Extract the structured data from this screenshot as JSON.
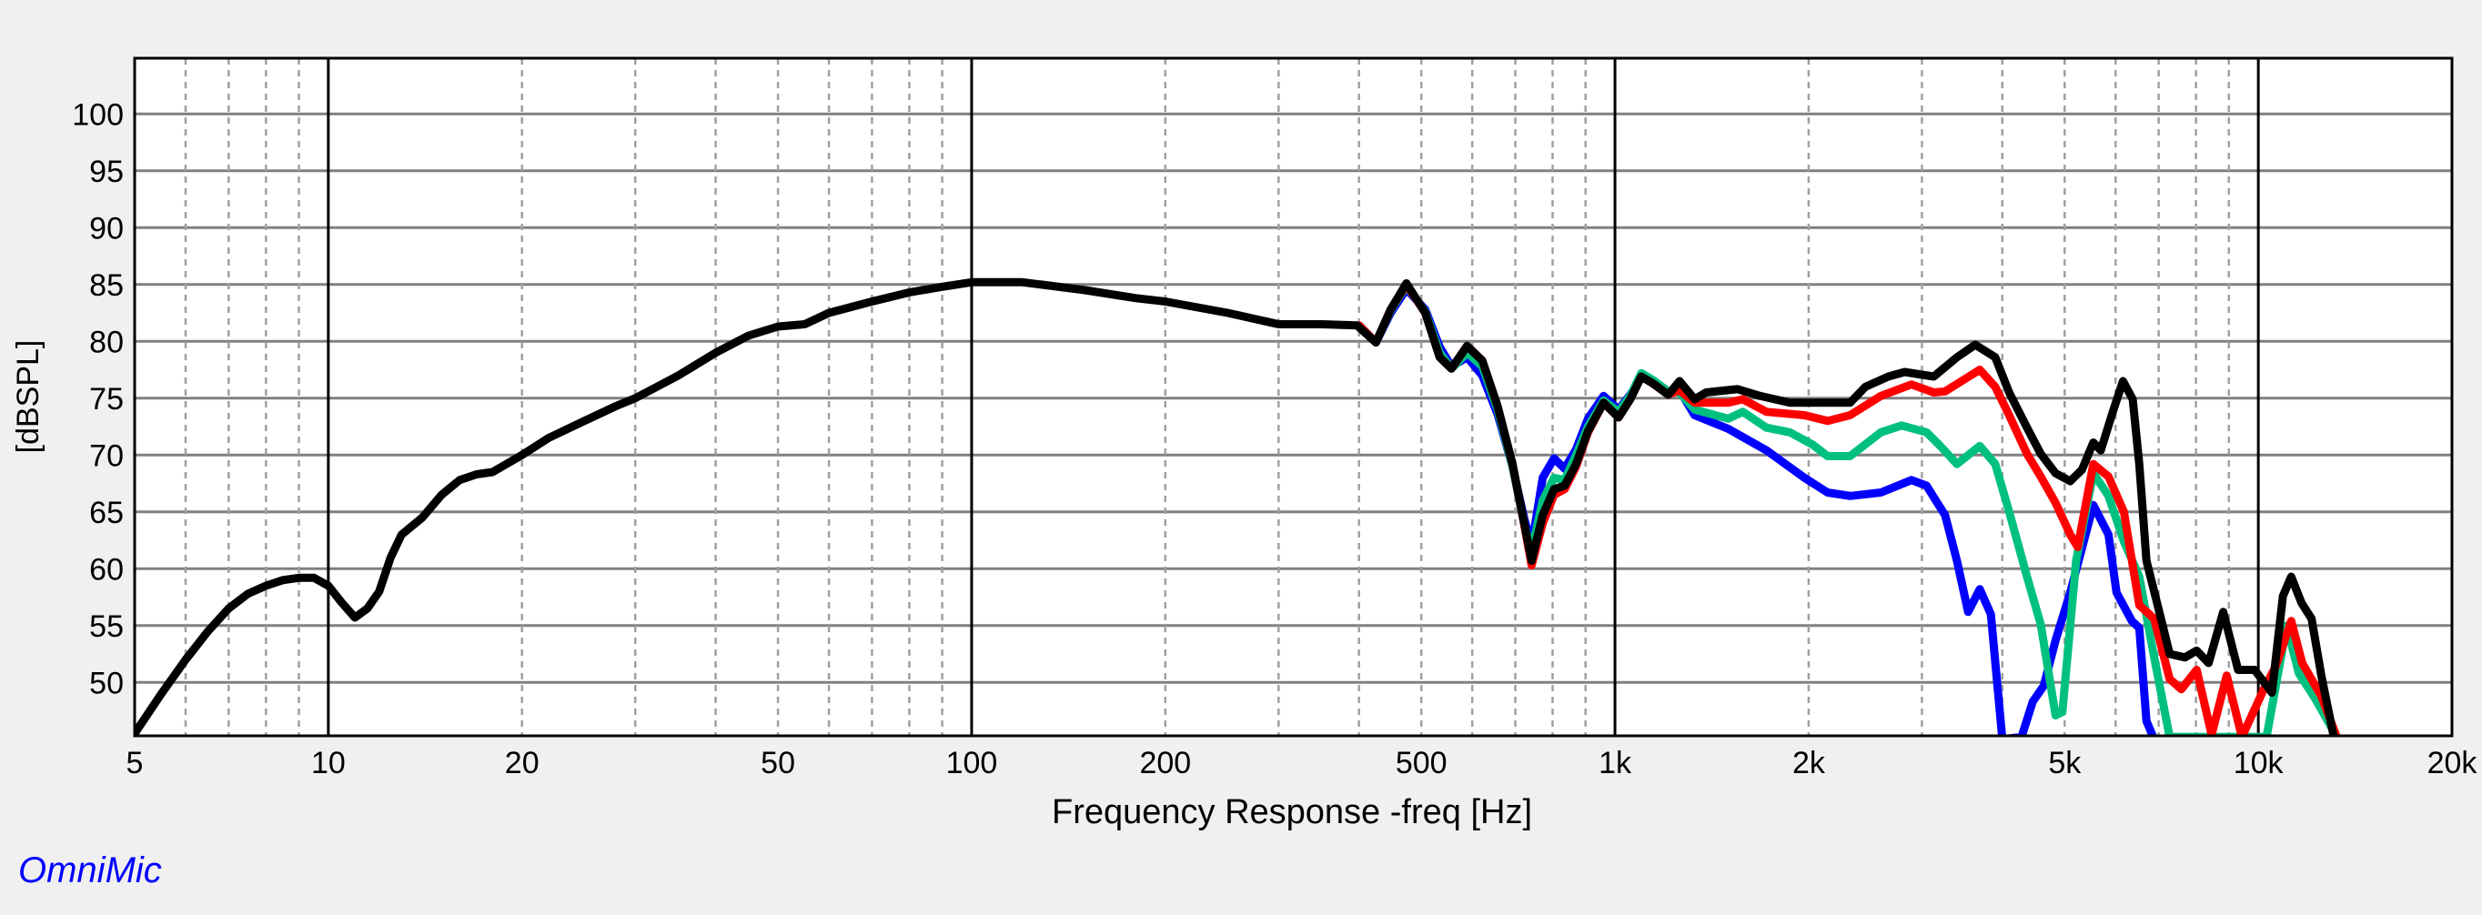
{
  "brand": "OmniMic",
  "chart_data": {
    "type": "line",
    "title": "",
    "xlabel": "Frequency Response -freq [Hz]",
    "ylabel": "[dBSPL]",
    "x_scale": "log",
    "xlim": [
      5,
      20000
    ],
    "ylim": [
      45.3,
      104.9
    ],
    "grid": true,
    "x_ticks": [
      {
        "value": 5,
        "label": "5"
      },
      {
        "value": 10,
        "label": "10"
      },
      {
        "value": 20,
        "label": "20"
      },
      {
        "value": 50,
        "label": "50"
      },
      {
        "value": 100,
        "label": "100"
      },
      {
        "value": 200,
        "label": "200"
      },
      {
        "value": 500,
        "label": "500"
      },
      {
        "value": 1000,
        "label": "1k"
      },
      {
        "value": 2000,
        "label": "2k"
      },
      {
        "value": 5000,
        "label": "5k"
      },
      {
        "value": 10000,
        "label": "10k"
      },
      {
        "value": 20000,
        "label": "20k"
      }
    ],
    "y_ticks": [
      50,
      55,
      60,
      65,
      70,
      75,
      80,
      85,
      90,
      95,
      100
    ],
    "series": [
      {
        "color": "#0000ff",
        "points": [
          [
            400,
            81.4
          ],
          [
            425,
            79.9
          ],
          [
            448,
            82.5
          ],
          [
            474,
            84.6
          ],
          [
            507,
            82.8
          ],
          [
            534,
            79.5
          ],
          [
            557,
            77.8
          ],
          [
            589,
            78.6
          ],
          [
            622,
            77
          ],
          [
            657,
            73.6
          ],
          [
            693,
            69
          ],
          [
            722,
            64.5
          ],
          [
            742,
            62
          ],
          [
            772,
            68
          ],
          [
            804,
            69.7
          ],
          [
            835,
            68.8
          ],
          [
            870,
            70.5
          ],
          [
            908,
            73.2
          ],
          [
            960,
            75.2
          ],
          [
            1013,
            74
          ],
          [
            1056,
            75.3
          ],
          [
            1099,
            76.8
          ],
          [
            1145,
            76.5
          ],
          [
            1210,
            75.5
          ],
          [
            1260,
            75.7
          ],
          [
            1330,
            73.5
          ],
          [
            1500,
            72.3
          ],
          [
            1720,
            70.4
          ],
          [
            1970,
            68
          ],
          [
            2140,
            66.7
          ],
          [
            2320,
            66.4
          ],
          [
            2590,
            66.7
          ],
          [
            2890,
            67.8
          ],
          [
            3050,
            67.3
          ],
          [
            3260,
            64.7
          ],
          [
            3400,
            60.7
          ],
          [
            3540,
            56.2
          ],
          [
            3690,
            58.2
          ],
          [
            3840,
            56
          ],
          [
            4000,
            45
          ],
          [
            4285,
            45.2
          ],
          [
            4460,
            48.3
          ],
          [
            4640,
            49.7
          ],
          [
            4840,
            53.7
          ],
          [
            5100,
            57.9
          ],
          [
            5540,
            65.6
          ],
          [
            5850,
            63
          ],
          [
            6020,
            57.9
          ],
          [
            6360,
            55.4
          ],
          [
            6530,
            54.8
          ],
          [
            6700,
            46.6
          ],
          [
            6890,
            45
          ]
        ]
      },
      {
        "color": "#00c080",
        "points": [
          [
            400,
            81.4
          ],
          [
            425,
            79.9
          ],
          [
            448,
            82.7
          ],
          [
            474,
            84.9
          ],
          [
            507,
            82.6
          ],
          [
            534,
            79
          ],
          [
            557,
            77.6
          ],
          [
            589,
            79
          ],
          [
            622,
            77.8
          ],
          [
            657,
            74
          ],
          [
            693,
            69
          ],
          [
            722,
            64
          ],
          [
            742,
            61.5
          ],
          [
            772,
            66
          ],
          [
            804,
            68
          ],
          [
            835,
            67.8
          ],
          [
            870,
            70
          ],
          [
            908,
            72.5
          ],
          [
            960,
            74.8
          ],
          [
            1013,
            73.8
          ],
          [
            1056,
            75.2
          ],
          [
            1099,
            77.2
          ],
          [
            1145,
            76.6
          ],
          [
            1210,
            75.6
          ],
          [
            1260,
            75.5
          ],
          [
            1330,
            74
          ],
          [
            1500,
            73.2
          ],
          [
            1580,
            73.8
          ],
          [
            1720,
            72.4
          ],
          [
            1870,
            72
          ],
          [
            2030,
            70.9
          ],
          [
            2140,
            69.9
          ],
          [
            2320,
            69.9
          ],
          [
            2590,
            72
          ],
          [
            2790,
            72.6
          ],
          [
            3050,
            72
          ],
          [
            3190,
            70.9
          ],
          [
            3400,
            69.2
          ],
          [
            3690,
            70.8
          ],
          [
            3900,
            69.2
          ],
          [
            4100,
            65
          ],
          [
            4370,
            59.3
          ],
          [
            4590,
            55.1
          ],
          [
            4840,
            47.1
          ],
          [
            4960,
            47.4
          ],
          [
            5210,
            60.7
          ],
          [
            5540,
            68.4
          ],
          [
            5850,
            66.4
          ],
          [
            6180,
            62.4
          ],
          [
            6530,
            59.3
          ],
          [
            6890,
            52.2
          ],
          [
            7280,
            45.2
          ],
          [
            10300,
            45.2
          ],
          [
            11070,
            55
          ],
          [
            11560,
            50.8
          ],
          [
            12250,
            48.6
          ],
          [
            13240,
            45.2
          ]
        ]
      },
      {
        "color": "#ff0000",
        "points": [
          [
            400,
            81.4
          ],
          [
            425,
            79.9
          ],
          [
            448,
            82.8
          ],
          [
            474,
            85
          ],
          [
            507,
            82.5
          ],
          [
            534,
            78.6
          ],
          [
            557,
            77.6
          ],
          [
            589,
            79.6
          ],
          [
            622,
            78.3
          ],
          [
            657,
            74.3
          ],
          [
            693,
            69.2
          ],
          [
            722,
            64
          ],
          [
            742,
            60.3
          ],
          [
            772,
            64
          ],
          [
            804,
            66.5
          ],
          [
            835,
            67
          ],
          [
            870,
            69
          ],
          [
            908,
            72
          ],
          [
            960,
            74.6
          ],
          [
            1013,
            73.3
          ],
          [
            1056,
            74.9
          ],
          [
            1099,
            76.9
          ],
          [
            1145,
            76.3
          ],
          [
            1210,
            75.3
          ],
          [
            1260,
            75.7
          ],
          [
            1330,
            74.6
          ],
          [
            1500,
            74.6
          ],
          [
            1580,
            74.9
          ],
          [
            1720,
            73.8
          ],
          [
            1970,
            73.5
          ],
          [
            2140,
            73
          ],
          [
            2320,
            73.5
          ],
          [
            2590,
            75.2
          ],
          [
            2890,
            76.2
          ],
          [
            3130,
            75.5
          ],
          [
            3260,
            75.6
          ],
          [
            3690,
            77.5
          ],
          [
            3900,
            76
          ],
          [
            4100,
            73.5
          ],
          [
            4370,
            70.1
          ],
          [
            4590,
            68.1
          ],
          [
            4840,
            65.8
          ],
          [
            5100,
            63
          ],
          [
            5240,
            61.9
          ],
          [
            5540,
            69.2
          ],
          [
            5850,
            68.1
          ],
          [
            6180,
            65
          ],
          [
            6530,
            56.8
          ],
          [
            6890,
            55.6
          ],
          [
            7280,
            50.3
          ],
          [
            7590,
            49.4
          ],
          [
            8020,
            51.1
          ],
          [
            8460,
            45.4
          ],
          [
            8930,
            50.6
          ],
          [
            9430,
            45.2
          ],
          [
            10200,
            49.4
          ],
          [
            10640,
            51.4
          ],
          [
            11250,
            55.4
          ],
          [
            11700,
            51.7
          ],
          [
            12530,
            48.8
          ],
          [
            13240,
            45.2
          ]
        ]
      },
      {
        "color": "#000000",
        "points": [
          [
            5,
            45.5
          ],
          [
            5.5,
            49
          ],
          [
            6,
            52
          ],
          [
            6.5,
            54.5
          ],
          [
            7,
            56.5
          ],
          [
            7.5,
            57.8
          ],
          [
            8,
            58.5
          ],
          [
            8.5,
            59
          ],
          [
            9,
            59.2
          ],
          [
            9.5,
            59.2
          ],
          [
            10,
            58.5
          ],
          [
            10.5,
            57
          ],
          [
            11,
            55.7
          ],
          [
            11.5,
            56.5
          ],
          [
            12,
            58
          ],
          [
            12.5,
            61
          ],
          [
            13,
            63
          ],
          [
            14,
            64.5
          ],
          [
            15,
            66.5
          ],
          [
            16,
            67.8
          ],
          [
            17,
            68.3
          ],
          [
            18,
            68.5
          ],
          [
            20,
            70
          ],
          [
            22,
            71.5
          ],
          [
            25,
            73
          ],
          [
            28,
            74.3
          ],
          [
            30,
            75
          ],
          [
            35,
            77
          ],
          [
            40,
            79
          ],
          [
            45,
            80.5
          ],
          [
            50,
            81.3
          ],
          [
            55,
            81.5
          ],
          [
            60,
            82.5
          ],
          [
            70,
            83.5
          ],
          [
            80,
            84.3
          ],
          [
            90,
            84.8
          ],
          [
            100,
            85.2
          ],
          [
            120,
            85.2
          ],
          [
            150,
            84.5
          ],
          [
            180,
            83.8
          ],
          [
            200,
            83.5
          ],
          [
            250,
            82.5
          ],
          [
            300,
            81.5
          ],
          [
            350,
            81.5
          ],
          [
            397,
            81.4
          ],
          [
            425,
            79.9
          ],
          [
            448,
            82.8
          ],
          [
            474,
            85.1
          ],
          [
            507,
            82.5
          ],
          [
            534,
            78.6
          ],
          [
            557,
            77.6
          ],
          [
            589,
            79.6
          ],
          [
            622,
            78.3
          ],
          [
            657,
            74.3
          ],
          [
            693,
            69.2
          ],
          [
            722,
            64.1
          ],
          [
            742,
            60.7
          ],
          [
            772,
            64.7
          ],
          [
            804,
            67
          ],
          [
            835,
            67.3
          ],
          [
            870,
            69.2
          ],
          [
            908,
            72.1
          ],
          [
            960,
            74.6
          ],
          [
            1013,
            73.3
          ],
          [
            1056,
            74.9
          ],
          [
            1099,
            76.9
          ],
          [
            1145,
            76.3
          ],
          [
            1210,
            75.3
          ],
          [
            1260,
            76.5
          ],
          [
            1330,
            74.9
          ],
          [
            1385,
            75.5
          ],
          [
            1550,
            75.8
          ],
          [
            1680,
            75.2
          ],
          [
            1870,
            74.6
          ],
          [
            2080,
            74.6
          ],
          [
            2320,
            74.6
          ],
          [
            2450,
            76
          ],
          [
            2660,
            76.9
          ],
          [
            2820,
            77.3
          ],
          [
            3130,
            76.9
          ],
          [
            3400,
            78.6
          ],
          [
            3630,
            79.7
          ],
          [
            3900,
            78.6
          ],
          [
            4100,
            75.5
          ],
          [
            4370,
            72.4
          ],
          [
            4590,
            70.1
          ],
          [
            4840,
            68.4
          ],
          [
            5100,
            67.7
          ],
          [
            5320,
            68.7
          ],
          [
            5540,
            71.1
          ],
          [
            5690,
            70.4
          ],
          [
            5940,
            73.8
          ],
          [
            6160,
            76.5
          ],
          [
            6380,
            74.9
          ],
          [
            6530,
            69.2
          ],
          [
            6700,
            60.7
          ],
          [
            7060,
            55.6
          ],
          [
            7280,
            52.5
          ],
          [
            7690,
            52.2
          ],
          [
            8020,
            52.8
          ],
          [
            8370,
            51.7
          ],
          [
            8820,
            56.2
          ],
          [
            9300,
            51.1
          ],
          [
            9870,
            51.1
          ],
          [
            10500,
            49.1
          ],
          [
            10920,
            57.6
          ],
          [
            11250,
            59.3
          ],
          [
            11670,
            57
          ],
          [
            12100,
            55.6
          ],
          [
            12530,
            50.6
          ],
          [
            13100,
            45.2
          ]
        ]
      }
    ]
  }
}
